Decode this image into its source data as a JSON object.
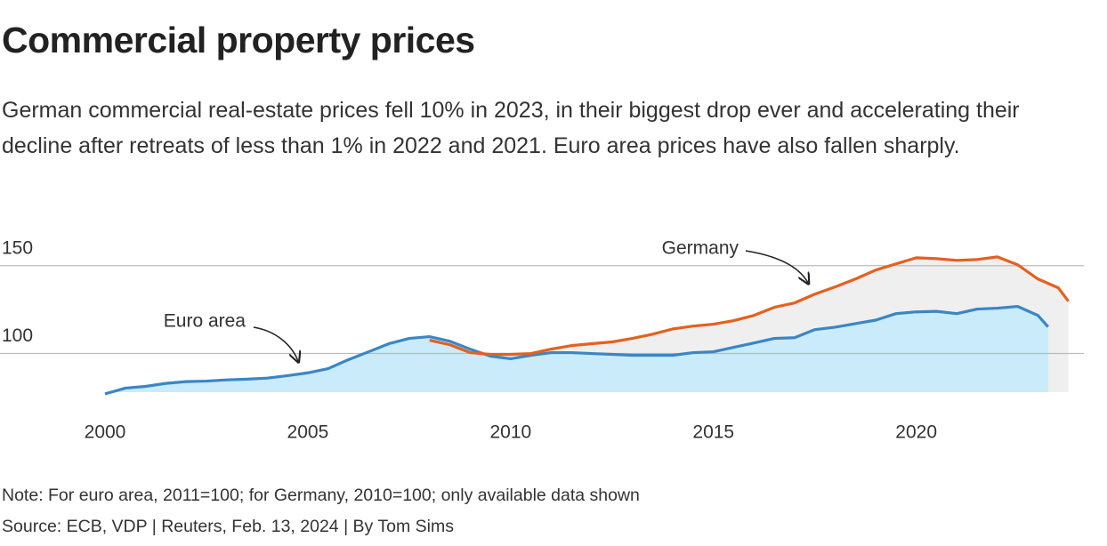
{
  "chart_data": {
    "type": "line",
    "title": "Commercial property prices",
    "subtitle": "German commercial real-estate prices fell 10% in 2023, in their biggest drop ever and accelerating their decline after retreats of less than 1% in 2022 and 2021. Euro area prices have also fallen sharply.",
    "note": "Note: For euro area, 2011=100; for Germany, 2010=100; only available data shown",
    "source": "Source: ECB, VDP | Reuters, Feb. 13, 2024 | By Tom Sims",
    "xlim": [
      2000,
      2024
    ],
    "xticks": [
      2000,
      2005,
      2010,
      2015,
      2020
    ],
    "ylim": [
      78,
      160
    ],
    "yticks": [
      100,
      150
    ],
    "grid": true,
    "series": [
      {
        "name": "Euro area",
        "color": "#3a86c5",
        "fill": "#c9ebfa",
        "x": [
          2000,
          2000.5,
          2001,
          2001.5,
          2002,
          2002.5,
          2003,
          2003.5,
          2004,
          2004.5,
          2005,
          2005.5,
          2006,
          2006.5,
          2007,
          2007.5,
          2008,
          2008.5,
          2009,
          2009.5,
          2010,
          2010.5,
          2011,
          2011.5,
          2012,
          2012.5,
          2013,
          2013.5,
          2014,
          2014.5,
          2015,
          2015.5,
          2016,
          2016.5,
          2017,
          2017.5,
          2018,
          2018.5,
          2019,
          2019.5,
          2020,
          2020.5,
          2021,
          2021.5,
          2022,
          2022.5,
          2023,
          2023.25
        ],
        "values": [
          77,
          80.3,
          81.3,
          83,
          84,
          84.3,
          85,
          85.4,
          86,
          87.4,
          89,
          91.4,
          96.5,
          101,
          105.6,
          108.6,
          109.6,
          107,
          102.5,
          98.5,
          97,
          99,
          100.5,
          100.5,
          100,
          99.5,
          99,
          99,
          99,
          100.5,
          101,
          103.5,
          106,
          108.6,
          109,
          113.6,
          115,
          117,
          119,
          122.7,
          123.7,
          124,
          122.7,
          125.3,
          125.8,
          126.8,
          121.7,
          115.2
        ]
      },
      {
        "name": "Germany",
        "color": "#e5601e",
        "fill": "#efefef",
        "x": [
          2008,
          2008.5,
          2009,
          2009.5,
          2010,
          2010.5,
          2011,
          2011.5,
          2012,
          2012.5,
          2013,
          2013.5,
          2014,
          2014.5,
          2015,
          2015.5,
          2016,
          2016.5,
          2017,
          2017.5,
          2018,
          2018.5,
          2019,
          2019.5,
          2020,
          2020.5,
          2021,
          2021.5,
          2022,
          2022.5,
          2023,
          2023.5,
          2023.75
        ],
        "values": [
          107.6,
          105,
          100.5,
          99.5,
          99.5,
          100,
          102.5,
          104.5,
          105.6,
          106.6,
          108.6,
          111,
          114,
          115.6,
          116.7,
          118.7,
          121.7,
          126.3,
          128.8,
          133.8,
          137.9,
          142.4,
          147.5,
          151,
          154.5,
          154,
          153,
          153.5,
          155,
          150.5,
          142.4,
          137.4,
          129.8
        ]
      }
    ]
  }
}
